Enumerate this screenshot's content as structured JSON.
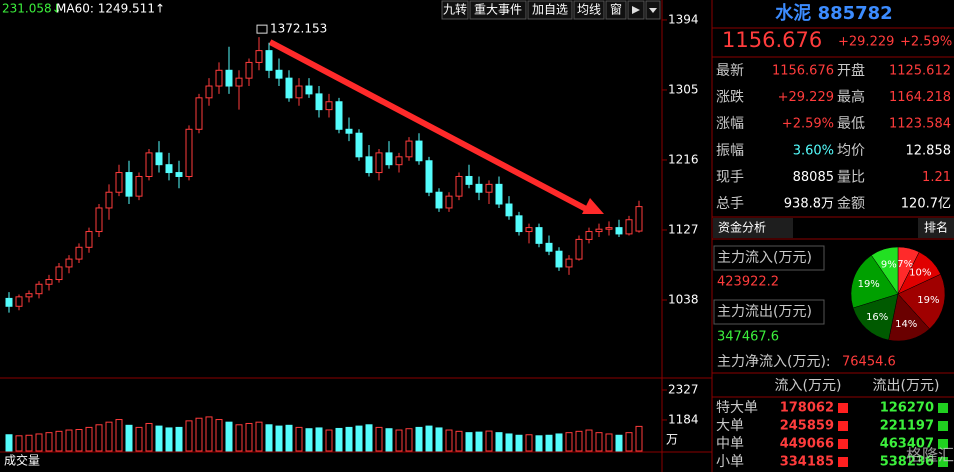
{
  "toolbar": {
    "ma_left": "231.058↓",
    "ma60": "MA60: 1249.511↑",
    "buttons": [
      "九转",
      "重大事件",
      "加自选",
      "均线",
      "窗"
    ]
  },
  "chart_data": {
    "type": "candlestick",
    "ohlc": [
      [
        1040,
        1048,
        1022,
        1030
      ],
      [
        1030,
        1045,
        1025,
        1042
      ],
      [
        1042,
        1050,
        1035,
        1046
      ],
      [
        1046,
        1062,
        1040,
        1058
      ],
      [
        1058,
        1070,
        1050,
        1064
      ],
      [
        1064,
        1085,
        1060,
        1080
      ],
      [
        1080,
        1095,
        1072,
        1090
      ],
      [
        1090,
        1110,
        1085,
        1105
      ],
      [
        1105,
        1130,
        1098,
        1125
      ],
      [
        1125,
        1160,
        1118,
        1155
      ],
      [
        1155,
        1185,
        1140,
        1175
      ],
      [
        1175,
        1210,
        1170,
        1200
      ],
      [
        1200,
        1215,
        1160,
        1170
      ],
      [
        1170,
        1200,
        1165,
        1195
      ],
      [
        1195,
        1230,
        1190,
        1225
      ],
      [
        1225,
        1240,
        1200,
        1210
      ],
      [
        1210,
        1225,
        1190,
        1200
      ],
      [
        1200,
        1215,
        1180,
        1195
      ],
      [
        1195,
        1260,
        1190,
        1255
      ],
      [
        1255,
        1300,
        1250,
        1295
      ],
      [
        1295,
        1320,
        1285,
        1310
      ],
      [
        1310,
        1340,
        1300,
        1330
      ],
      [
        1330,
        1360,
        1300,
        1310
      ],
      [
        1310,
        1330,
        1280,
        1320
      ],
      [
        1320,
        1345,
        1310,
        1340
      ],
      [
        1340,
        1372.153,
        1330,
        1355
      ],
      [
        1355,
        1365,
        1320,
        1330
      ],
      [
        1330,
        1345,
        1310,
        1320
      ],
      [
        1320,
        1330,
        1290,
        1295
      ],
      [
        1295,
        1320,
        1285,
        1310
      ],
      [
        1310,
        1320,
        1295,
        1300
      ],
      [
        1300,
        1310,
        1270,
        1280
      ],
      [
        1280,
        1300,
        1270,
        1290
      ],
      [
        1290,
        1295,
        1250,
        1255
      ],
      [
        1255,
        1270,
        1240,
        1250
      ],
      [
        1250,
        1255,
        1215,
        1220
      ],
      [
        1220,
        1235,
        1195,
        1200
      ],
      [
        1200,
        1230,
        1190,
        1225
      ],
      [
        1225,
        1240,
        1205,
        1210
      ],
      [
        1210,
        1225,
        1200,
        1220
      ],
      [
        1220,
        1245,
        1215,
        1240
      ],
      [
        1240,
        1250,
        1210,
        1215
      ],
      [
        1215,
        1220,
        1170,
        1175
      ],
      [
        1175,
        1180,
        1150,
        1155
      ],
      [
        1155,
        1175,
        1150,
        1170
      ],
      [
        1170,
        1200,
        1165,
        1195
      ],
      [
        1195,
        1210,
        1180,
        1185
      ],
      [
        1185,
        1195,
        1165,
        1175
      ],
      [
        1175,
        1190,
        1160,
        1185
      ],
      [
        1185,
        1195,
        1155,
        1160
      ],
      [
        1160,
        1170,
        1140,
        1145
      ],
      [
        1145,
        1150,
        1120,
        1125
      ],
      [
        1125,
        1135,
        1110,
        1130
      ],
      [
        1130,
        1135,
        1105,
        1110
      ],
      [
        1110,
        1120,
        1095,
        1100
      ],
      [
        1100,
        1105,
        1075,
        1080
      ],
      [
        1080,
        1095,
        1070,
        1090
      ],
      [
        1090,
        1120,
        1088,
        1115
      ],
      [
        1115,
        1130,
        1110,
        1125
      ],
      [
        1125,
        1135,
        1118,
        1128
      ],
      [
        1128,
        1138,
        1120,
        1130
      ],
      [
        1130,
        1140,
        1118,
        1122
      ],
      [
        1122,
        1145,
        1120,
        1140
      ],
      [
        1125.612,
        1164.218,
        1123.584,
        1156.676
      ]
    ],
    "volumes": [
      620,
      580,
      600,
      650,
      700,
      750,
      800,
      820,
      900,
      1000,
      1100,
      1200,
      980,
      900,
      1050,
      950,
      880,
      900,
      1150,
      1250,
      1300,
      1200,
      1100,
      1000,
      1050,
      1100,
      1000,
      950,
      980,
      900,
      850,
      880,
      800,
      860,
      900,
      950,
      1000,
      900,
      850,
      800,
      850,
      900,
      950,
      880,
      800,
      750,
      700,
      720,
      760,
      700,
      650,
      600,
      620,
      580,
      600,
      650,
      700,
      750,
      800,
      700,
      650,
      600,
      700,
      938.8
    ],
    "ylim": [
      949,
      1413
    ],
    "yticks": [
      1038,
      1127,
      1216,
      1305,
      1394
    ],
    "volume_ylim": [
      0,
      2594
    ],
    "volume_yticks": [
      1184,
      2327
    ],
    "volume_unit": "万",
    "volume_label": "成交量",
    "up_color": "#ff3c3c",
    "down_color": "#54fcfc"
  },
  "quote": {
    "name": "水泥",
    "code": "885782",
    "price": "1156.676",
    "change": "+29.229",
    "pct": "+2.59%",
    "rows": [
      [
        "最新",
        "1156.676",
        "开盘",
        "1125.612"
      ],
      [
        "涨跌",
        "+29.229",
        "最高",
        "1164.218"
      ],
      [
        "涨幅",
        "+2.59%",
        "最低",
        "1123.584"
      ],
      [
        "振幅",
        "3.60%",
        "均价",
        "12.858"
      ],
      [
        "现手",
        "88085",
        "量比",
        "1.21"
      ],
      [
        "总手",
        "938.8万",
        "金额",
        "120.7亿"
      ]
    ]
  },
  "fund": {
    "tabs": [
      "资金分析",
      "排名"
    ],
    "inflow_label": "主力流入(万元)",
    "inflow": "423922.2",
    "outflow_label": "主力流出(万元)",
    "outflow": "347467.6",
    "net_label": "主力净流入(万元):",
    "net": "76454.6",
    "pie": {
      "values": [
        7,
        10,
        19,
        14,
        16,
        19,
        9
      ],
      "value_labels": [
        "7%",
        "10%",
        "19%",
        "14%",
        "16%",
        "19%",
        "9%"
      ],
      "colors": [
        "#ff2a2a",
        "#e00000",
        "#a00000",
        "#6a0000",
        "#005a00",
        "#00a000",
        "#22e022"
      ]
    },
    "table": {
      "headers": [
        "流入(万元)",
        "流出(万元)"
      ],
      "rows": [
        [
          "特大单",
          "178062",
          "126270"
        ],
        [
          "大单",
          "245859",
          "221197"
        ],
        [
          "中单",
          "449066",
          "463407"
        ],
        [
          "小单",
          "334185",
          "538236"
        ]
      ]
    }
  },
  "watermark": "格隆汇"
}
